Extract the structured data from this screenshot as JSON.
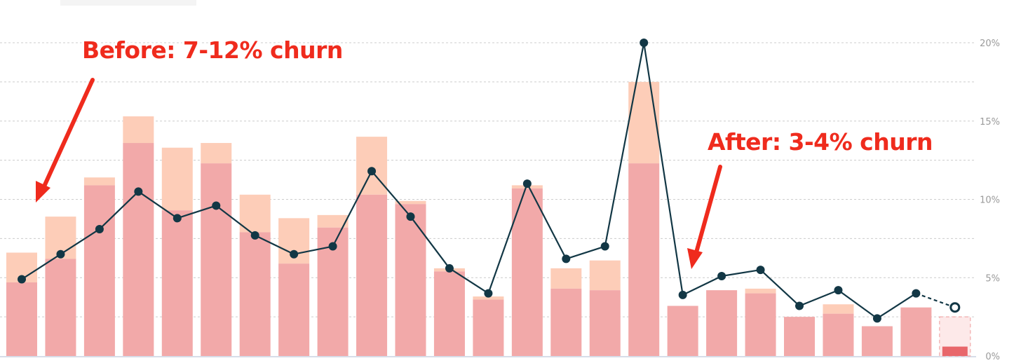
{
  "chart_data": {
    "type": "bar+line",
    "title": "",
    "xlabel": "",
    "ylabel": "",
    "ylim": [
      0,
      20
    ],
    "y_ticks": [
      {
        "value": 0,
        "label": "0%"
      },
      {
        "value": 5,
        "label": "5%"
      },
      {
        "value": 10,
        "label": "10%"
      },
      {
        "value": 15,
        "label": "15%"
      },
      {
        "value": 20,
        "label": "20%"
      }
    ],
    "grid": true,
    "y_axis_side": "right",
    "series": [
      {
        "color": "#f2a9a9",
        "values": [
          4.7,
          6.2,
          10.9,
          13.6,
          9.3,
          12.3,
          7.9,
          5.9,
          8.2,
          10.3,
          9.7,
          5.4,
          3.6,
          10.7,
          4.3,
          4.2,
          12.3,
          3.2,
          4.2,
          4.0,
          2.5,
          2.7,
          1.9,
          3.1,
          0.6
        ]
      },
      {
        "color": "#fdcdb8",
        "values": [
          1.9,
          2.7,
          0.5,
          1.7,
          4.0,
          1.3,
          2.4,
          2.9,
          0.8,
          3.7,
          0.2,
          0.2,
          0.2,
          0.2,
          1.3,
          1.9,
          5.2,
          0,
          0,
          0.3,
          0,
          0.6,
          0,
          0,
          1.9
        ]
      },
      {
        "color": "#123745",
        "values": [
          4.9,
          6.5,
          8.1,
          10.5,
          8.8,
          9.6,
          7.7,
          6.5,
          7.0,
          11.8,
          8.9,
          5.6,
          4.0,
          11.0,
          6.2,
          7.0,
          20.0,
          3.9,
          5.1,
          5.5,
          3.2,
          4.2,
          2.4,
          4.0,
          3.1
        ]
      }
    ],
    "last_point_projected": true
  },
  "annotations": {
    "before": "Before: 7-12% churn",
    "after": "After: 3-4% churn"
  },
  "colors": {
    "arrow": "#ef2b1d",
    "grid": "#cccccc",
    "projected_fill": "#fde9e9",
    "projected_bar": "#e8676b"
  }
}
